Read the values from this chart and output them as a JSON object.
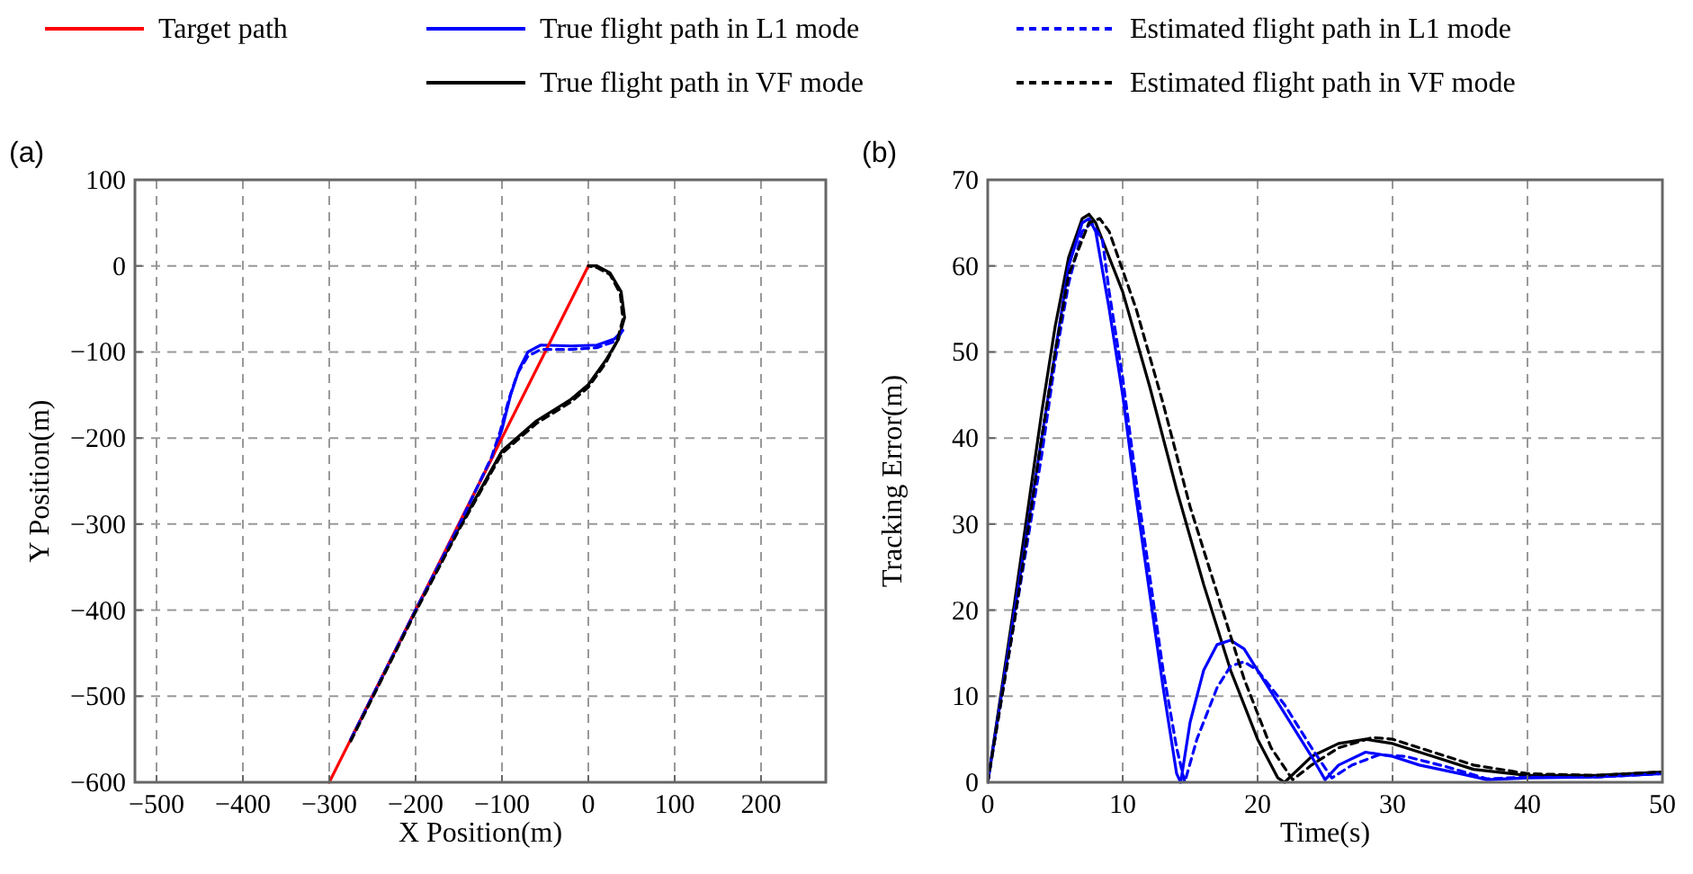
{
  "chart_data": [
    {
      "type": "line",
      "title": "(a)",
      "xlabel": "X Position(m)",
      "ylabel": "Y Position(m)",
      "xlim": [
        -525,
        275
      ],
      "ylim": [
        -600,
        100
      ],
      "xticks": [
        -500,
        -400,
        -300,
        -200,
        -100,
        0,
        100,
        200
      ],
      "yticks": [
        -600,
        -500,
        -400,
        -300,
        -200,
        -100,
        0,
        100
      ],
      "grid": true,
      "legend": "top",
      "series": [
        {
          "name": "Target path",
          "color": "#ff0000",
          "line_style": "solid",
          "x": [
            -300,
            0
          ],
          "values": [
            -600,
            0
          ]
        },
        {
          "name": "True flight path in L1 mode",
          "color": "#0000ff",
          "line_style": "solid",
          "x": [
            -275,
            -200,
            -150,
            -110,
            -100,
            -90,
            -80,
            -70,
            -55,
            -20,
            10,
            30,
            40
          ],
          "values": [
            -550,
            -400,
            -300,
            -220,
            -190,
            -150,
            -120,
            -100,
            -92,
            -93,
            -92,
            -85,
            -75
          ]
        },
        {
          "name": "Estimated flight path in L1 mode",
          "color": "#0000ff",
          "line_style": "dashed",
          "x": [
            -275,
            -200,
            -150,
            -112,
            -102,
            -92,
            -82,
            -70,
            -55,
            -20,
            10,
            30,
            38
          ],
          "values": [
            -550,
            -400,
            -302,
            -222,
            -192,
            -155,
            -125,
            -105,
            -97,
            -97,
            -95,
            -88,
            -78
          ]
        },
        {
          "name": "True flight path in VF mode",
          "color": "#000000",
          "line_style": "solid",
          "x": [
            -275,
            -200,
            -150,
            -100,
            -60,
            -20,
            0,
            20,
            35,
            42,
            38,
            25,
            10,
            0
          ],
          "values": [
            -550,
            -400,
            -305,
            -215,
            -180,
            -155,
            -138,
            -110,
            -85,
            -60,
            -30,
            -8,
            0,
            0
          ]
        },
        {
          "name": "Estimated flight path in VF mode",
          "color": "#000000",
          "line_style": "dashed",
          "x": [
            -275,
            -200,
            -150,
            -100,
            -60,
            -20,
            0,
            20,
            33,
            40,
            37,
            25,
            10,
            0
          ],
          "values": [
            -552,
            -402,
            -307,
            -218,
            -183,
            -158,
            -141,
            -113,
            -88,
            -62,
            -32,
            -10,
            -2,
            0
          ]
        }
      ]
    },
    {
      "type": "line",
      "title": "(b)",
      "xlabel": "Time(s)",
      "ylabel": "Tracking Error(m)",
      "xlim": [
        0,
        50
      ],
      "ylim": [
        0,
        70
      ],
      "xticks": [
        0,
        10,
        20,
        30,
        40,
        50
      ],
      "yticks": [
        0,
        10,
        20,
        30,
        40,
        50,
        60,
        70
      ],
      "grid": true,
      "series": [
        {
          "color": "#0000ff",
          "line_style": "solid",
          "x": [
            0,
            2,
            4,
            5,
            6,
            7,
            7.5,
            8,
            9,
            10,
            11,
            12,
            13,
            14,
            14.3,
            15,
            16,
            17,
            18,
            19,
            20,
            22,
            24,
            25,
            26,
            28,
            30,
            32,
            35,
            37,
            40,
            45,
            50
          ],
          "values": [
            0,
            20,
            40,
            50,
            60,
            65,
            65.5,
            64,
            55,
            45,
            33,
            22,
            11,
            1,
            0,
            7,
            13,
            16,
            16.5,
            15.5,
            13,
            8,
            3,
            0.3,
            2,
            3.5,
            3,
            2,
            1,
            0.3,
            0.5,
            0.6,
            1
          ]
        },
        {
          "color": "#0000ff",
          "line_style": "dashed",
          "x": [
            0,
            2,
            4,
            5,
            6,
            7,
            7.7,
            8.5,
            9,
            10,
            11,
            12,
            13,
            14,
            14.6,
            15.5,
            17,
            18,
            19,
            20,
            22,
            24,
            25.5,
            27,
            29,
            31,
            34,
            37,
            40,
            45,
            50
          ],
          "values": [
            0,
            19,
            38,
            49,
            58,
            64,
            65,
            63,
            57,
            47,
            35,
            24,
            13,
            4,
            0,
            5,
            11,
            13.5,
            14,
            13,
            9,
            4,
            0.5,
            2,
            3.2,
            3,
            1.8,
            0.4,
            0.6,
            0.6,
            1
          ]
        },
        {
          "color": "#000000",
          "line_style": "solid",
          "x": [
            0,
            2,
            4,
            5,
            6,
            7,
            7.5,
            8,
            10,
            12,
            14,
            16,
            18,
            20,
            21.5,
            22,
            24,
            26,
            28,
            30,
            33,
            36,
            40,
            45,
            50
          ],
          "values": [
            0,
            21,
            43,
            53,
            61,
            65.5,
            66,
            65,
            57,
            46,
            34,
            23,
            13,
            5,
            0.5,
            0,
            3,
            4.5,
            5,
            4.5,
            3,
            1.5,
            0.8,
            0.8,
            1.2
          ]
        },
        {
          "color": "#000000",
          "line_style": "dashed",
          "x": [
            0,
            2,
            4,
            5,
            6,
            7.5,
            8.3,
            9,
            11,
            13,
            15,
            17,
            19,
            21,
            22.6,
            24,
            26,
            28.5,
            30,
            33,
            36,
            40,
            45,
            50
          ],
          "values": [
            0,
            19,
            40,
            50,
            59,
            65,
            65.5,
            64,
            55,
            44,
            32,
            22,
            12,
            4,
            0.3,
            2,
            4,
            5.2,
            5,
            3.5,
            2,
            1,
            0.8,
            1.2
          ]
        }
      ]
    }
  ]
}
